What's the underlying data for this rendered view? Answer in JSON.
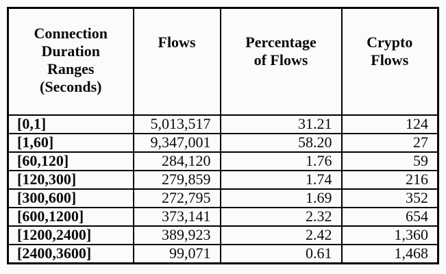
{
  "table": {
    "headers": [
      {
        "id": "duration_ranges",
        "label": "Connection\nDuration\nRanges\n(Seconds)"
      },
      {
        "id": "flows",
        "label": "Flows"
      },
      {
        "id": "percentage_of_flows",
        "label": "Percentage\nof Flows"
      },
      {
        "id": "crypto_flows",
        "label": "Crypto\nFlows"
      }
    ],
    "rows": [
      {
        "range": "[0,1]",
        "flows": "5,013,517",
        "percentage": "31.21",
        "crypto_flows": "124"
      },
      {
        "range": "[1,60]",
        "flows": "9,347,001",
        "percentage": "58.20",
        "crypto_flows": "27"
      },
      {
        "range": "[60,120]",
        "flows": "284,120",
        "percentage": "1.76",
        "crypto_flows": "59"
      },
      {
        "range": "[120,300]",
        "flows": "279,859",
        "percentage": "1.74",
        "crypto_flows": "216"
      },
      {
        "range": "[300,600]",
        "flows": "272,795",
        "percentage": "1.69",
        "crypto_flows": "352"
      },
      {
        "range": "[600,1200]",
        "flows": "373,141",
        "percentage": "2.32",
        "crypto_flows": "654"
      },
      {
        "range": "[1200,2400]",
        "flows": "389,923",
        "percentage": "2.42",
        "crypto_flows": "1,360"
      },
      {
        "range": "[2400,3600]",
        "flows": "99,071",
        "percentage": "0.61",
        "crypto_flows": "1,468"
      }
    ],
    "colors": {
      "border": "#000000",
      "text": "#0a0a0a",
      "background": "#fbfbfb"
    }
  }
}
